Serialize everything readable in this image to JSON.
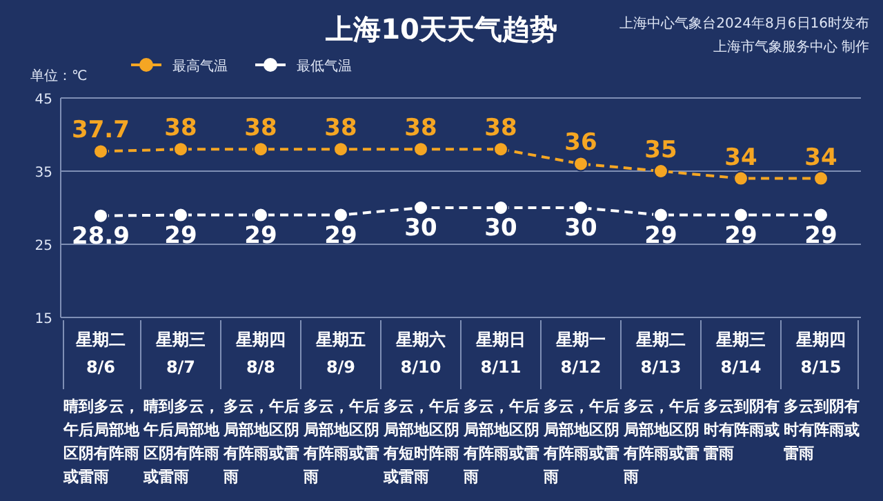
{
  "chart_data": {
    "type": "line",
    "title": "上海10天天气趋势",
    "ylabel": "单位：℃",
    "categories": [
      "星期二\n8/6",
      "星期三\n8/7",
      "星期四\n8/8",
      "星期五\n8/9",
      "星期六\n8/10",
      "星期日\n8/11",
      "星期一\n8/12",
      "星期二\n8/13",
      "星期三\n8/14",
      "星期四\n8/15"
    ],
    "series": [
      {
        "name": "最高气温",
        "color": "#f5a623",
        "values": [
          37.7,
          38,
          38,
          38,
          38,
          38,
          36,
          35,
          34,
          34
        ]
      },
      {
        "name": "最低气温",
        "color": "#ffffff",
        "values": [
          28.9,
          29,
          29,
          29,
          30,
          30,
          30,
          29,
          29,
          29
        ]
      }
    ],
    "ylim": [
      15,
      45
    ],
    "yticks": [
      15,
      25,
      35,
      45
    ],
    "grid": "y",
    "legend": "top left",
    "marker": "circle",
    "line_style": "dashed",
    "data_labels": true,
    "annotations": [
      "上海中心气象台2024年8月6日16时发布",
      "上海市气象服务中心 制作",
      "晴到多云，午后局部地区阴有阵雨或雷雨",
      "晴到多云，午后局部地区阴有阵雨或雷雨",
      "多云，午后局部地区阴有阵雨或雷雨",
      "多云，午后局部地区阴有阵雨或雷雨",
      "多云，午后局部地区阴有短时阵雨或雷雨",
      "多云，午后局部地区阴有阵雨或雷雨",
      "多云，午后局部地区阴有阵雨或雷雨",
      "多云，午后局部地区阴有阵雨或雷雨",
      "多云到阴有时有阵雨或雷雨",
      "多云到阴有时有阵雨或雷雨"
    ]
  }
}
